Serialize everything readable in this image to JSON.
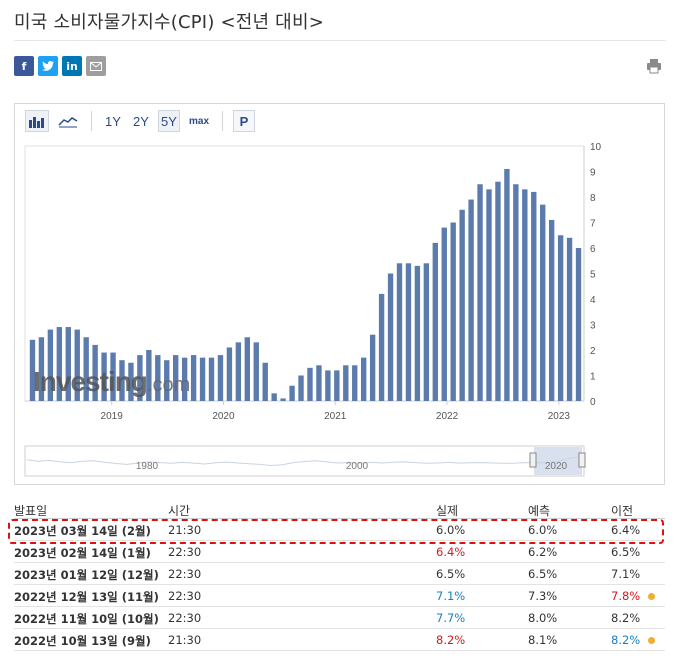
{
  "page": {
    "title": "미국 소비자물가지수(CPI) <전년 대비>"
  },
  "share": {
    "facebook": "f",
    "twitter": "t",
    "linkedin": "in",
    "email": "✉",
    "icons": [
      "facebook-icon",
      "twitter-icon",
      "linkedin-icon",
      "email-icon",
      "print-icon"
    ]
  },
  "toolbar": {
    "range_1y": "1Y",
    "range_2y": "2Y",
    "range_5y": "5Y",
    "range_max": "max",
    "p": "P",
    "selected_range": "5Y"
  },
  "chart": {
    "watermark_main": "Investing",
    "watermark_suffix": ".com",
    "yaxis_ticks": [
      "0",
      "1",
      "2",
      "3",
      "4",
      "5",
      "6",
      "7",
      "8",
      "9",
      "10"
    ],
    "xaxis_ticks": [
      "2019",
      "2020",
      "2021",
      "2022",
      "2023"
    ],
    "navigator_ticks": [
      "1980",
      "2000",
      "2020"
    ],
    "bar_color": "#5a7bab",
    "navigator_fill": "#c7d4e6"
  },
  "chart_data": {
    "type": "bar",
    "ylim": [
      0,
      10
    ],
    "title": "",
    "xlabel": "",
    "ylabel": "",
    "x_ticks": [
      "2019",
      "2020",
      "2021",
      "2022",
      "2023"
    ],
    "values": [
      2.4,
      2.5,
      2.8,
      2.9,
      2.9,
      2.8,
      2.5,
      2.2,
      1.9,
      1.9,
      1.6,
      1.5,
      1.8,
      2.0,
      1.8,
      1.6,
      1.8,
      1.7,
      1.8,
      1.7,
      1.7,
      1.8,
      2.1,
      2.3,
      2.5,
      2.3,
      1.5,
      0.3,
      0.1,
      0.6,
      1.0,
      1.3,
      1.4,
      1.2,
      1.2,
      1.4,
      1.4,
      1.7,
      2.6,
      4.2,
      5.0,
      5.4,
      5.4,
      5.3,
      5.4,
      6.2,
      6.8,
      7.0,
      7.5,
      7.9,
      8.5,
      8.3,
      8.6,
      9.1,
      8.5,
      8.3,
      8.2,
      7.7,
      7.1,
      6.5,
      6.4,
      6.0
    ],
    "selected_range": "5Y"
  },
  "table": {
    "headers": {
      "date": "발표일",
      "time": "시간",
      "actual": "실제",
      "forecast": "예측",
      "previous": "이전"
    },
    "rows": [
      {
        "date": "2023년 03월 14일 (2월)",
        "time": "21:30",
        "actual": "6.0%",
        "forecast": "6.0%",
        "previous": "6.4%",
        "actual_color": "",
        "previous_color": "",
        "dot": false
      },
      {
        "date": "2023년 02월 14일 (1월)",
        "time": "22:30",
        "actual": "6.4%",
        "forecast": "6.2%",
        "previous": "6.5%",
        "actual_color": "red",
        "previous_color": "",
        "dot": false
      },
      {
        "date": "2023년 01월 12일 (12월)",
        "time": "22:30",
        "actual": "6.5%",
        "forecast": "6.5%",
        "previous": "7.1%",
        "actual_color": "",
        "previous_color": "",
        "dot": false
      },
      {
        "date": "2022년 12월 13일 (11월)",
        "time": "22:30",
        "actual": "7.1%",
        "forecast": "7.3%",
        "previous": "7.8%",
        "actual_color": "blue",
        "previous_color": "red",
        "dot": true
      },
      {
        "date": "2022년 11월 10일 (10월)",
        "time": "22:30",
        "actual": "7.7%",
        "forecast": "8.0%",
        "previous": "8.2%",
        "actual_color": "blue",
        "previous_color": "",
        "dot": false
      },
      {
        "date": "2022년 10월 13일 (9월)",
        "time": "21:30",
        "actual": "8.2%",
        "forecast": "8.1%",
        "previous": "8.2%",
        "actual_color": "red",
        "previous_color": "blue",
        "dot": true
      }
    ]
  }
}
